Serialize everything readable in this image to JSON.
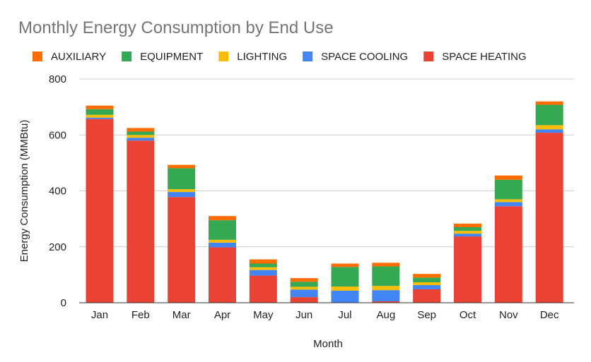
{
  "chart_data": {
    "type": "bar",
    "stacked": true,
    "title": "Monthly Energy Consumption by End Use",
    "xlabel": "Month",
    "ylabel": "Energy Consumption (MMBtu)",
    "ylim": [
      0,
      800
    ],
    "yticks": [
      0,
      200,
      400,
      600,
      800
    ],
    "grid": true,
    "legend_position": "top",
    "categories": [
      "Jan",
      "Feb",
      "Mar",
      "Apr",
      "May",
      "Jun",
      "Jul",
      "Aug",
      "Sep",
      "Oct",
      "Nov",
      "Dec"
    ],
    "series": [
      {
        "name": "SPACE HEATING",
        "color": "#ea4335",
        "values": [
          657,
          580,
          378,
          198,
          97,
          20,
          0,
          5,
          48,
          237,
          345,
          608
        ]
      },
      {
        "name": "SPACE COOLING",
        "color": "#4285f4",
        "values": [
          5,
          10,
          18,
          17,
          20,
          27,
          43,
          40,
          15,
          10,
          15,
          12
        ]
      },
      {
        "name": "LIGHTING",
        "color": "#fbbc04",
        "values": [
          10,
          10,
          10,
          10,
          10,
          10,
          15,
          15,
          10,
          10,
          10,
          15
        ]
      },
      {
        "name": "EQUIPMENT",
        "color": "#34a853",
        "values": [
          20,
          12,
          75,
          70,
          13,
          18,
          70,
          70,
          17,
          13,
          70,
          73
        ]
      },
      {
        "name": "AUXILIARY",
        "color": "#ff6d01",
        "values": [
          13,
          13,
          12,
          15,
          15,
          13,
          12,
          13,
          13,
          13,
          15,
          12
        ]
      }
    ],
    "legend_order": [
      "AUXILIARY",
      "EQUIPMENT",
      "LIGHTING",
      "SPACE COOLING",
      "SPACE HEATING"
    ]
  }
}
